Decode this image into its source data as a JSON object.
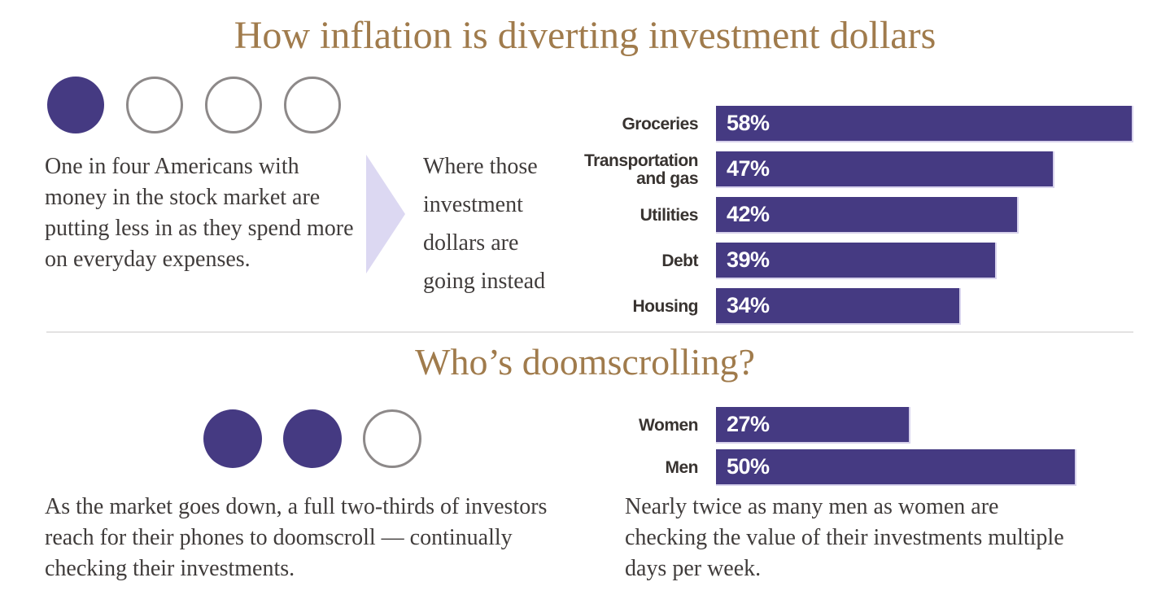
{
  "colors": {
    "accent_purple": "#453a82",
    "title_gold": "#a07b4c",
    "arrow_lavender": "#dcd8f2",
    "circle_outline": "#8d8989",
    "divider_gray": "#e3e2e2"
  },
  "section1": {
    "title": "How inflation is diverting investment dollars",
    "pictogram": {
      "filled": 1,
      "total": 4
    },
    "caption": "One in four Americans with money in the stock market are putting less in as they spend more on everyday expenses.",
    "arrow_caption": "Where those investment dollars are going instead",
    "arrow_caption_lines": [
      "Where those",
      "investment",
      "dollars are",
      "going instead"
    ]
  },
  "section2": {
    "title": "Who’s doomscrolling?",
    "pictogram": {
      "filled": 2,
      "total": 3
    },
    "caption": "As the market goes down, a full two-thirds of investors reach for their phones to doomscroll — continually checking their investments.",
    "caption_lines": [
      "As the market goes down, a full two-thirds of investors",
      "reach for their phones to doomscroll — continually",
      "checking their investments."
    ],
    "right_caption": "Nearly twice as many men as women are checking the value of their investments multiple days per week.",
    "right_caption_lines": [
      "Nearly twice as many men as women are",
      "checking the value of their investments multiple",
      "days per week."
    ]
  },
  "chart_data": [
    {
      "type": "bar",
      "orientation": "horizontal",
      "title": "Where those investment dollars are going instead",
      "categories": [
        "Groceries",
        "Transportation and gas",
        "Utilities",
        "Debt",
        "Housing"
      ],
      "values": [
        58,
        47,
        42,
        39,
        34
      ],
      "value_labels": [
        "58%",
        "47%",
        "42%",
        "39%",
        "34%"
      ],
      "unit": "%",
      "xlim": [
        0,
        58
      ],
      "bar_color": "#453a82",
      "grid": false,
      "legend": false
    },
    {
      "type": "bar",
      "orientation": "horizontal",
      "title": "Who’s doomscrolling?",
      "categories": [
        "Women",
        "Men"
      ],
      "values": [
        27,
        50
      ],
      "value_labels": [
        "27%",
        "50%"
      ],
      "unit": "%",
      "xlim": [
        0,
        50
      ],
      "bar_color": "#453a82",
      "grid": false,
      "legend": false
    }
  ]
}
